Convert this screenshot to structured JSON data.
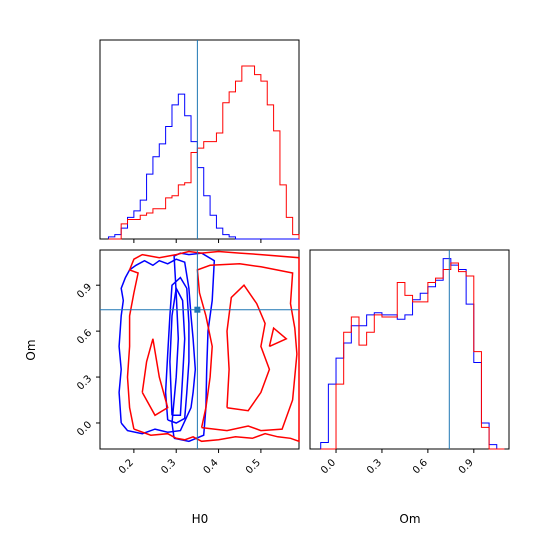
{
  "chart_data": {
    "type": "corner",
    "parameters": [
      "H0",
      "Om"
    ],
    "xlabels": {
      "H0": "H0",
      "Om": "Om"
    },
    "ylabel": "Om",
    "truth": {
      "H0": 0.35,
      "Om": 0.74
    },
    "colors": {
      "series_a": "#0000ff",
      "series_b": "#ff0000",
      "truth": "#1f77b4",
      "axes": "#000000"
    },
    "ranges": {
      "H0": [
        0.12,
        0.59
      ],
      "Om": [
        -0.17,
        1.13
      ]
    },
    "ticks": {
      "H0": [
        0.2,
        0.3,
        0.4,
        0.5
      ],
      "H0_labels": [
        "0.2",
        "0.3",
        "0.4",
        "0.5"
      ],
      "Om": [
        0.0,
        0.3,
        0.6,
        0.9
      ],
      "Om_labels": [
        "0.0",
        "0.3",
        "0.6",
        "0.9"
      ]
    },
    "hist_H0": {
      "bin_edges": [
        0.14,
        0.155,
        0.17,
        0.185,
        0.2,
        0.215,
        0.23,
        0.245,
        0.26,
        0.275,
        0.29,
        0.305,
        0.32,
        0.335,
        0.35,
        0.365,
        0.38,
        0.395,
        0.41,
        0.425,
        0.44,
        0.455,
        0.47,
        0.485,
        0.5,
        0.515,
        0.53,
        0.545,
        0.56,
        0.575,
        0.59
      ],
      "series": [
        {
          "color": "blue",
          "counts": [
            0.01,
            0.02,
            0.05,
            0.1,
            0.13,
            0.18,
            0.3,
            0.38,
            0.44,
            0.52,
            0.62,
            0.67,
            0.57,
            0.45,
            0.33,
            0.2,
            0.11,
            0.05,
            0.02,
            0.01,
            0,
            0,
            0,
            0,
            0,
            0,
            0,
            0,
            0,
            0
          ]
        },
        {
          "color": "red",
          "counts": [
            0,
            0,
            0.07,
            0.09,
            0.09,
            0.11,
            0.12,
            0.14,
            0.14,
            0.19,
            0.2,
            0.25,
            0.26,
            0.4,
            0.42,
            0.45,
            0.45,
            0.49,
            0.63,
            0.68,
            0.73,
            0.8,
            0.8,
            0.76,
            0.73,
            0.62,
            0.5,
            0.25,
            0.1,
            0.02
          ]
        }
      ]
    },
    "hist_Om": {
      "bin_edges": [
        -0.1,
        -0.05,
        0.0,
        0.05,
        0.1,
        0.15,
        0.2,
        0.25,
        0.3,
        0.35,
        0.4,
        0.45,
        0.5,
        0.55,
        0.6,
        0.65,
        0.7,
        0.75,
        0.8,
        0.85,
        0.9,
        0.95,
        1.0,
        1.05,
        1.1
      ],
      "series": [
        {
          "color": "blue",
          "counts": [
            0.03,
            0.3,
            0.42,
            0.49,
            0.57,
            0.57,
            0.62,
            0.63,
            0.62,
            0.62,
            0.6,
            0.62,
            0.69,
            0.72,
            0.75,
            0.78,
            0.88,
            0.85,
            0.83,
            0.67,
            0.4,
            0.12,
            0.02,
            0
          ]
        },
        {
          "color": "red",
          "counts": [
            0,
            0,
            0.3,
            0.54,
            0.61,
            0.48,
            0.54,
            0.62,
            0.61,
            0.61,
            0.77,
            0.71,
            0.68,
            0.68,
            0.77,
            0.79,
            0.83,
            0.86,
            0.82,
            0.8,
            0.45,
            0.1,
            0,
            0
          ]
        }
      ]
    },
    "contours": [
      {
        "color": "blue",
        "level": "outer",
        "points": [
          [
            0.17,
            0.0
          ],
          [
            0.185,
            -0.05
          ],
          [
            0.22,
            -0.07
          ],
          [
            0.25,
            -0.04
          ],
          [
            0.28,
            -0.06
          ],
          [
            0.31,
            -0.05
          ],
          [
            0.335,
            0.1
          ],
          [
            0.34,
            0.2
          ],
          [
            0.345,
            0.35
          ],
          [
            0.34,
            0.55
          ],
          [
            0.335,
            0.7
          ],
          [
            0.33,
            0.88
          ],
          [
            0.32,
            1.05
          ],
          [
            0.3,
            1.07
          ],
          [
            0.28,
            1.04
          ],
          [
            0.26,
            1.06
          ],
          [
            0.245,
            1.03
          ],
          [
            0.225,
            1.06
          ],
          [
            0.205,
            1.03
          ],
          [
            0.19,
            1.0
          ],
          [
            0.18,
            0.95
          ],
          [
            0.17,
            0.88
          ],
          [
            0.175,
            0.8
          ],
          [
            0.17,
            0.7
          ],
          [
            0.165,
            0.5
          ],
          [
            0.17,
            0.35
          ],
          [
            0.165,
            0.2
          ],
          [
            0.17,
            0.0
          ]
        ]
      },
      {
        "color": "blue",
        "level": "inner",
        "points": [
          [
            0.28,
            0.02
          ],
          [
            0.3,
            0.0
          ],
          [
            0.32,
            0.03
          ],
          [
            0.325,
            0.2
          ],
          [
            0.33,
            0.4
          ],
          [
            0.33,
            0.65
          ],
          [
            0.325,
            0.88
          ],
          [
            0.31,
            0.95
          ],
          [
            0.29,
            0.9
          ],
          [
            0.285,
            0.7
          ],
          [
            0.28,
            0.45
          ],
          [
            0.275,
            0.2
          ],
          [
            0.28,
            0.02
          ]
        ]
      },
      {
        "color": "blue",
        "level": "inner",
        "points": [
          [
            0.29,
            0.05
          ],
          [
            0.31,
            0.05
          ],
          [
            0.315,
            0.3
          ],
          [
            0.32,
            0.55
          ],
          [
            0.315,
            0.8
          ],
          [
            0.3,
            0.88
          ],
          [
            0.29,
            0.7
          ],
          [
            0.285,
            0.4
          ],
          [
            0.29,
            0.05
          ]
        ]
      },
      {
        "color": "blue",
        "level": "outer",
        "points": [
          [
            0.295,
            -0.1
          ],
          [
            0.33,
            -0.12
          ],
          [
            0.365,
            -0.08
          ],
          [
            0.37,
            0.1
          ],
          [
            0.372,
            0.35
          ],
          [
            0.375,
            0.6
          ],
          [
            0.385,
            0.8
          ],
          [
            0.39,
            1.06
          ],
          [
            0.36,
            1.11
          ],
          [
            0.33,
            1.1
          ],
          [
            0.31,
            1.11
          ],
          [
            0.295,
            1.09
          ],
          [
            0.3,
            0.85
          ],
          [
            0.305,
            0.55
          ],
          [
            0.3,
            0.3
          ],
          [
            0.29,
            0.0
          ],
          [
            0.295,
            -0.1
          ]
        ]
      },
      {
        "color": "red",
        "level": "outer",
        "points": [
          [
            0.2,
            -0.04
          ],
          [
            0.24,
            -0.08
          ],
          [
            0.28,
            -0.07
          ],
          [
            0.3,
            -0.1
          ],
          [
            0.32,
            -0.11
          ],
          [
            0.34,
            -0.09
          ],
          [
            0.36,
            -0.12
          ],
          [
            0.4,
            -0.11
          ],
          [
            0.44,
            -0.09
          ],
          [
            0.48,
            -0.1
          ],
          [
            0.51,
            -0.07
          ],
          [
            0.54,
            -0.09
          ],
          [
            0.57,
            -0.1
          ],
          [
            0.59,
            -0.12
          ],
          [
            0.59,
            1.08
          ],
          [
            0.5,
            1.1
          ],
          [
            0.45,
            1.11
          ],
          [
            0.4,
            1.12
          ],
          [
            0.36,
            1.11
          ],
          [
            0.33,
            1.12
          ],
          [
            0.3,
            1.1
          ],
          [
            0.26,
            1.08
          ],
          [
            0.22,
            1.1
          ],
          [
            0.2,
            1.07
          ],
          [
            0.19,
            1.0
          ],
          [
            0.21,
            0.98
          ],
          [
            0.2,
            0.85
          ],
          [
            0.19,
            0.7
          ],
          [
            0.19,
            0.5
          ],
          [
            0.185,
            0.3
          ],
          [
            0.19,
            0.1
          ],
          [
            0.2,
            -0.04
          ]
        ]
      },
      {
        "color": "red",
        "level": "inner",
        "points": [
          [
            0.36,
            -0.03
          ],
          [
            0.42,
            -0.05
          ],
          [
            0.47,
            -0.02
          ],
          [
            0.5,
            -0.05
          ],
          [
            0.55,
            -0.04
          ],
          [
            0.575,
            0.15
          ],
          [
            0.585,
            0.45
          ],
          [
            0.58,
            0.62
          ],
          [
            0.57,
            0.78
          ],
          [
            0.575,
            0.98
          ],
          [
            0.5,
            1.02
          ],
          [
            0.45,
            1.04
          ],
          [
            0.38,
            1.03
          ],
          [
            0.35,
            1.0
          ],
          [
            0.355,
            0.85
          ],
          [
            0.37,
            0.7
          ],
          [
            0.385,
            0.5
          ],
          [
            0.38,
            0.3
          ],
          [
            0.37,
            0.1
          ],
          [
            0.36,
            -0.03
          ]
        ]
      },
      {
        "color": "red",
        "level": "inner",
        "points": [
          [
            0.42,
            0.1
          ],
          [
            0.47,
            0.08
          ],
          [
            0.5,
            0.2
          ],
          [
            0.52,
            0.35
          ],
          [
            0.5,
            0.5
          ],
          [
            0.51,
            0.65
          ],
          [
            0.49,
            0.78
          ],
          [
            0.46,
            0.9
          ],
          [
            0.43,
            0.82
          ],
          [
            0.42,
            0.6
          ],
          [
            0.425,
            0.35
          ],
          [
            0.42,
            0.1
          ]
        ]
      },
      {
        "color": "red",
        "level": "inner",
        "points": [
          [
            0.22,
            0.2
          ],
          [
            0.25,
            0.05
          ],
          [
            0.28,
            0.1
          ],
          [
            0.26,
            0.3
          ],
          [
            0.245,
            0.55
          ],
          [
            0.23,
            0.4
          ],
          [
            0.22,
            0.2
          ]
        ]
      },
      {
        "color": "red",
        "level": "inner",
        "points": [
          [
            0.52,
            0.5
          ],
          [
            0.56,
            0.55
          ],
          [
            0.53,
            0.62
          ],
          [
            0.52,
            0.5
          ]
        ]
      }
    ]
  }
}
